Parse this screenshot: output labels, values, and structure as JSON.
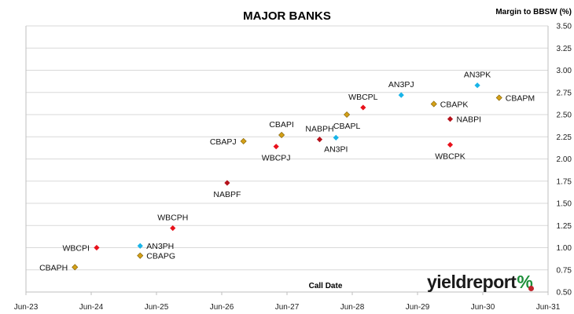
{
  "colors": {
    "cba": "#d4a017",
    "wbc": "#e8111b",
    "nab": "#b5121b",
    "anz": "#18b4e8",
    "logo_green": "#1e8f3a",
    "logo_red": "#c0262d"
  },
  "logo": {
    "text": "yieldreport",
    "symbol": "%"
  },
  "chart_data": {
    "type": "scatter",
    "title": "MAJOR BANKS",
    "xlabel": "Call Date",
    "ylabel": "Margin to BBSW (%)",
    "x_ticks": [
      "Jun-23",
      "Jun-24",
      "Jun-25",
      "Jun-26",
      "Jun-27",
      "Jun-28",
      "Jun-29",
      "Jun-30",
      "Jun-31"
    ],
    "y_ticks": [
      "0.50",
      "0.75",
      "1.00",
      "1.25",
      "1.50",
      "1.75",
      "2.00",
      "2.25",
      "2.50",
      "2.75",
      "3.00",
      "3.25",
      "3.50"
    ],
    "xlim": [
      "2023-06",
      "2031-06"
    ],
    "ylim": [
      0.5,
      3.5
    ],
    "grid": "horizontal",
    "points": [
      {
        "label": "CBAPH",
        "bank": "cba",
        "date": "2024-03",
        "margin": 0.78,
        "label_pos": "left"
      },
      {
        "label": "WBCPI",
        "bank": "wbc",
        "date": "2024-07",
        "margin": 1.0,
        "label_pos": "left"
      },
      {
        "label": "AN3PH",
        "bank": "anz",
        "date": "2025-03",
        "margin": 1.02,
        "label_pos": "right"
      },
      {
        "label": "CBAPG",
        "bank": "cba",
        "date": "2025-03",
        "margin": 0.91,
        "label_pos": "right"
      },
      {
        "label": "WBCPH",
        "bank": "wbc",
        "date": "2025-09",
        "margin": 1.22,
        "label_pos": "above"
      },
      {
        "label": "NABPF",
        "bank": "nab",
        "date": "2026-07",
        "margin": 1.73,
        "label_pos": "below"
      },
      {
        "label": "CBAPJ",
        "bank": "cba",
        "date": "2026-10",
        "margin": 2.2,
        "label_pos": "left"
      },
      {
        "label": "CBAPI",
        "bank": "cba",
        "date": "2027-05",
        "margin": 2.27,
        "label_pos": "above"
      },
      {
        "label": "WBCPJ",
        "bank": "wbc",
        "date": "2027-04",
        "margin": 2.14,
        "label_pos": "below"
      },
      {
        "label": "NABPH",
        "bank": "nab",
        "date": "2027-12",
        "margin": 2.22,
        "label_pos": "above"
      },
      {
        "label": "AN3PI",
        "bank": "anz",
        "date": "2028-03",
        "margin": 2.24,
        "label_pos": "below"
      },
      {
        "label": "CBAPL",
        "bank": "cba",
        "date": "2028-05",
        "margin": 2.5,
        "label_pos": "below"
      },
      {
        "label": "WBCPL",
        "bank": "wbc",
        "date": "2028-08",
        "margin": 2.58,
        "label_pos": "above"
      },
      {
        "label": "AN3PJ",
        "bank": "anz",
        "date": "2029-03",
        "margin": 2.72,
        "label_pos": "above"
      },
      {
        "label": "CBAPK",
        "bank": "cba",
        "date": "2029-09",
        "margin": 2.62,
        "label_pos": "right"
      },
      {
        "label": "NABPI",
        "bank": "nab",
        "date": "2029-12",
        "margin": 2.45,
        "label_pos": "right"
      },
      {
        "label": "WBCPK",
        "bank": "wbc",
        "date": "2029-12",
        "margin": 2.16,
        "label_pos": "below"
      },
      {
        "label": "AN3PK",
        "bank": "anz",
        "date": "2030-05",
        "margin": 2.83,
        "label_pos": "above"
      },
      {
        "label": "CBAPM",
        "bank": "cba",
        "date": "2030-09",
        "margin": 2.69,
        "label_pos": "right"
      }
    ]
  }
}
